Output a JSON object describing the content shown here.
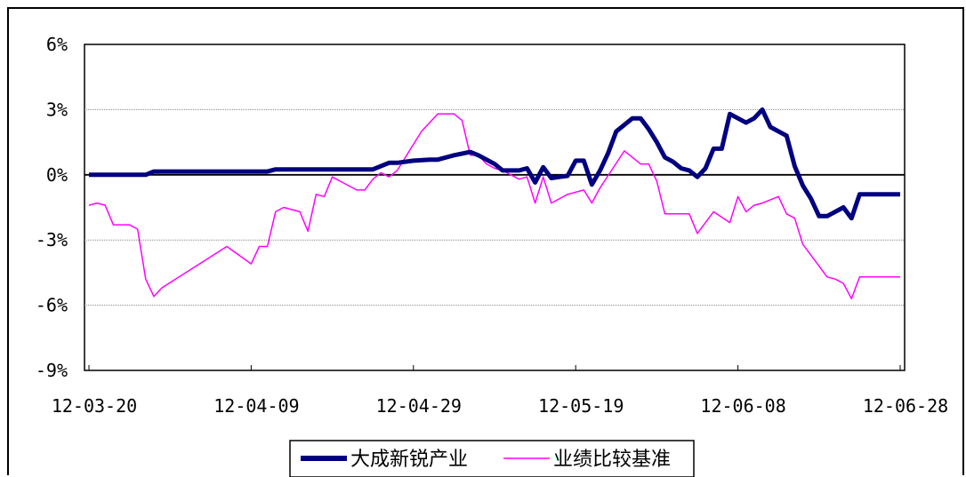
{
  "chart_data": {
    "type": "line",
    "title": "",
    "xlabel": "",
    "ylabel": "",
    "ylim": [
      -9,
      6
    ],
    "yticks": [
      "6%",
      "3%",
      "0%",
      "-3%",
      "-6%",
      "-9%"
    ],
    "ytick_values": [
      6,
      3,
      0,
      -3,
      -6,
      -9
    ],
    "xticks": [
      "12-03-20",
      "12-04-09",
      "12-04-29",
      "12-05-19",
      "12-06-08",
      "12-06-28"
    ],
    "xlim": [
      0,
      100
    ],
    "grid": true,
    "legend_position": "bottom-center",
    "series": [
      {
        "name": "大成新锐产业",
        "color": "#000080",
        "x": [
          0,
          7,
          8,
          10,
          22,
          23,
          25,
          35,
          37,
          38,
          40,
          42,
          43,
          45,
          47,
          48,
          50,
          51,
          53,
          54,
          55,
          56,
          57,
          58,
          59,
          60,
          61,
          62,
          63,
          64,
          65,
          67,
          68,
          69,
          70,
          71,
          72,
          73,
          74,
          75,
          76,
          77,
          78,
          79,
          81,
          82,
          83,
          84,
          86,
          87,
          88,
          89,
          90,
          91,
          93,
          94,
          95,
          96,
          97,
          98,
          99,
          100
        ],
        "values": [
          0.0,
          0.0,
          0.15,
          0.15,
          0.15,
          0.25,
          0.25,
          0.25,
          0.55,
          0.55,
          0.65,
          0.7,
          0.7,
          0.9,
          1.05,
          0.9,
          0.5,
          0.2,
          0.2,
          0.3,
          -0.35,
          0.35,
          -0.15,
          -0.1,
          -0.05,
          0.65,
          0.65,
          -0.45,
          0.2,
          1.0,
          2.0,
          2.6,
          2.6,
          2.1,
          1.5,
          0.8,
          0.6,
          0.3,
          0.2,
          -0.1,
          0.3,
          1.2,
          1.2,
          2.8,
          2.4,
          2.6,
          3.0,
          2.2,
          1.8,
          0.4,
          -0.5,
          -1.1,
          -1.9,
          -1.9,
          -1.5,
          -2.0,
          -0.9,
          -0.9,
          -0.9,
          -0.9,
          -0.9,
          -0.9
        ],
        "line_width": "thick"
      },
      {
        "name": "业绩比较基准",
        "color": "#ff00ff",
        "x": [
          0,
          1,
          2,
          3,
          5,
          6,
          7,
          8,
          9,
          17,
          20,
          21,
          22,
          23,
          24,
          26,
          27,
          28,
          29,
          30,
          31,
          33,
          34,
          35,
          36,
          37,
          38,
          40,
          41,
          43,
          45,
          46,
          47,
          48,
          49,
          50,
          51,
          53,
          54,
          55,
          56,
          57,
          59,
          61,
          62,
          63,
          66,
          67,
          68,
          69,
          70,
          71,
          74,
          75,
          76,
          77,
          79,
          80,
          81,
          82,
          83,
          85,
          86,
          87,
          88,
          89,
          90,
          91,
          92,
          93,
          94,
          95,
          96,
          97,
          98,
          99,
          100
        ],
        "values": [
          -1.4,
          -1.3,
          -1.4,
          -2.3,
          -2.3,
          -2.5,
          -4.8,
          -5.6,
          -5.2,
          -3.3,
          -4.1,
          -3.3,
          -3.3,
          -1.7,
          -1.5,
          -1.7,
          -2.6,
          -0.9,
          -1.0,
          -0.1,
          -0.3,
          -0.7,
          -0.7,
          -0.2,
          0.1,
          -0.1,
          0.2,
          1.4,
          2.0,
          2.8,
          2.8,
          2.5,
          0.9,
          0.9,
          0.5,
          0.3,
          0.2,
          -0.2,
          -0.1,
          -1.3,
          -0.1,
          -1.3,
          -0.9,
          -0.7,
          -1.3,
          -0.6,
          1.1,
          0.8,
          0.5,
          0.5,
          -0.3,
          -1.8,
          -1.8,
          -2.7,
          -2.2,
          -1.7,
          -2.2,
          -1.0,
          -1.7,
          -1.4,
          -1.3,
          -1.0,
          -1.8,
          -2.0,
          -3.2,
          -3.7,
          -4.2,
          -4.7,
          -4.8,
          -5.0,
          -5.7,
          -4.7,
          -4.7,
          -4.7,
          -4.7,
          -4.7,
          -4.7
        ],
        "line_width": "thin"
      }
    ]
  }
}
